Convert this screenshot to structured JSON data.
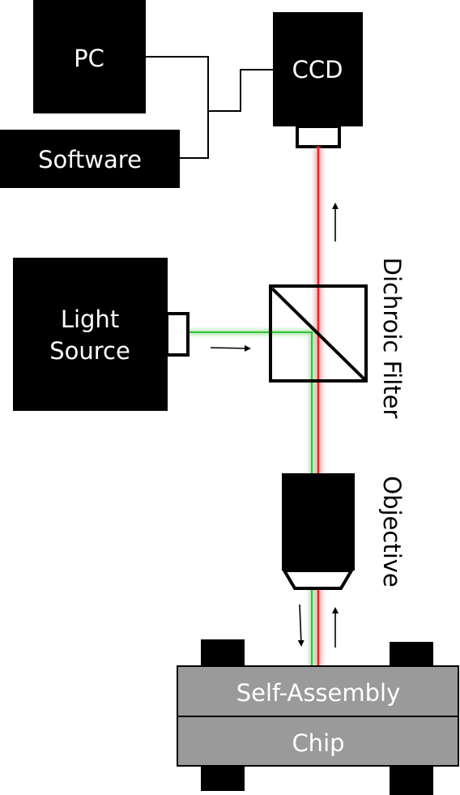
{
  "diagram": {
    "labels": {
      "pc": "PC",
      "ccd": "CCD",
      "software": "Software",
      "light_source_line1": "Light",
      "light_source_line2": "Source",
      "dichroic_filter": "Dichroic Filter",
      "objective": "Objective",
      "self_assembly": "Self-Assembly",
      "chip": "Chip"
    },
    "colors": {
      "block": "#000000",
      "red_beam": "#e8262a",
      "green_beam": "#38c038",
      "chip_fill": "#9a9a9a",
      "text_on_dark": "#ffffff",
      "text_on_light": "#000000"
    }
  }
}
